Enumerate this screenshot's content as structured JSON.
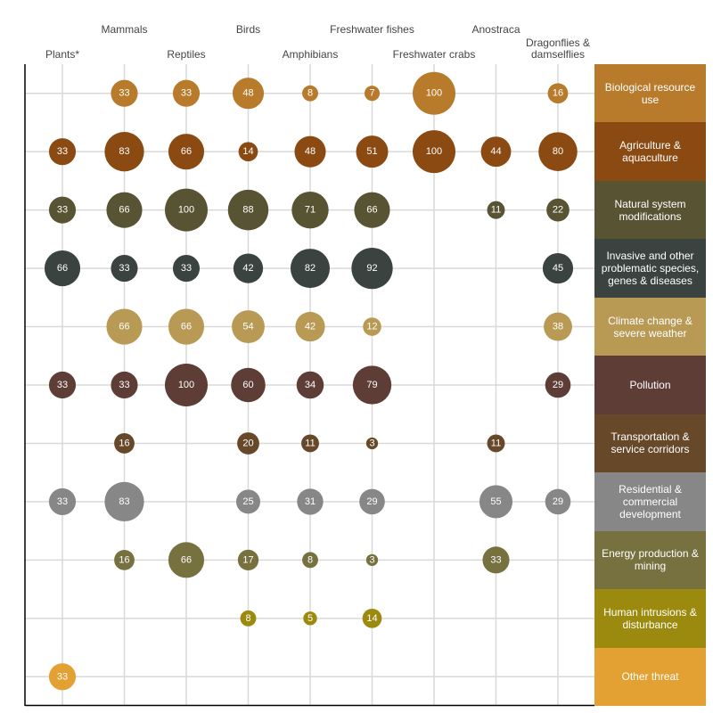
{
  "chart_data": {
    "type": "bubble",
    "categories": [
      "Plants*",
      "Mammals",
      "Reptiles",
      "Birds",
      "Amphibians",
      "Freshwater fishes",
      "Freshwater crabs",
      "Anostraca",
      "Dragonflies & damselflies"
    ],
    "series": [
      {
        "name": "Biological resource use",
        "color": "#b87b2c",
        "values": [
          null,
          33,
          33,
          48,
          8,
          7,
          100,
          null,
          16
        ]
      },
      {
        "name": "Agriculture & aquaculture",
        "color": "#8a4a12",
        "values": [
          33,
          83,
          66,
          14,
          48,
          51,
          100,
          44,
          80
        ]
      },
      {
        "name": "Natural system modifications",
        "color": "#575333",
        "values": [
          33,
          66,
          100,
          88,
          71,
          66,
          null,
          11,
          22
        ]
      },
      {
        "name": "Invasive and other problematic species, genes & diseases",
        "color": "#3a4340",
        "values": [
          66,
          33,
          33,
          42,
          82,
          92,
          null,
          null,
          45
        ]
      },
      {
        "name": "Climate change & severe weather",
        "color": "#b89a55",
        "values": [
          null,
          66,
          66,
          54,
          42,
          12,
          null,
          null,
          38
        ]
      },
      {
        "name": "Pollution",
        "color": "#5e3d36",
        "values": [
          33,
          33,
          100,
          60,
          34,
          79,
          null,
          null,
          29
        ]
      },
      {
        "name": "Transportation & service corridors",
        "color": "#67492a",
        "values": [
          null,
          16,
          null,
          20,
          11,
          3,
          null,
          11,
          null
        ]
      },
      {
        "name": "Residential & commercial development",
        "color": "#878787",
        "values": [
          33,
          83,
          null,
          25,
          31,
          29,
          null,
          55,
          29
        ]
      },
      {
        "name": "Energy production & mining",
        "color": "#77703f",
        "values": [
          null,
          16,
          66,
          17,
          8,
          3,
          null,
          33,
          null
        ]
      },
      {
        "name": "Human intrusions & disturbance",
        "color": "#9c8a0e",
        "values": [
          null,
          null,
          null,
          8,
          5,
          14,
          null,
          null,
          null
        ]
      },
      {
        "name": "Other threat",
        "color": "#e3a033",
        "values": [
          33,
          null,
          null,
          null,
          null,
          null,
          null,
          null,
          null
        ]
      }
    ]
  }
}
